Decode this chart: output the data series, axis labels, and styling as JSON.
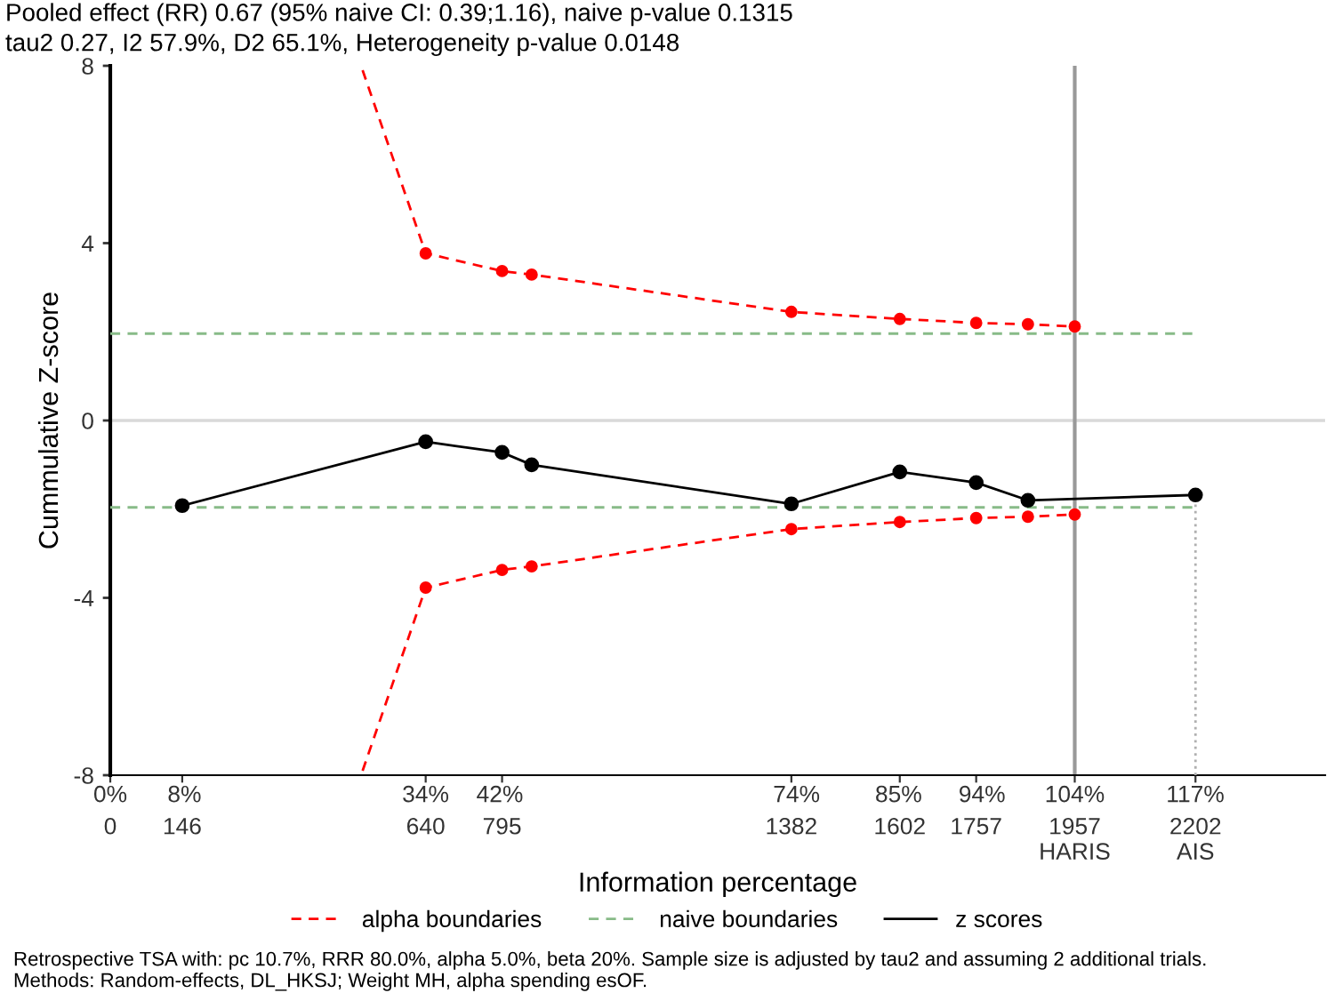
{
  "chart_data": {
    "type": "line",
    "title": "Pooled effect (RR) 0.67 (95% naive CI: 0.39;1.16), naive p-value 0.1315",
    "subtitle": "tau2 0.27, I2 57.9%, D2 65.1%, Heterogeneity p-value 0.0148",
    "xlabel": "Information percentage",
    "ylabel": "Cummulative Z-score",
    "xlim": [
      0,
      2465
    ],
    "xticks": [
      0,
      146,
      640,
      795,
      1382,
      1602,
      1757,
      {
        "value": 1957,
        "label": "1957\nHARIS"
      },
      {
        "value": 2202,
        "label": "2202\nAIS"
      }
    ],
    "x2lim": [
      0,
      131
    ],
    "x2ticks": [
      {
        "value": 0,
        "label": "0%"
      },
      {
        "value": 8,
        "label": "8%"
      },
      {
        "value": 34,
        "label": "34%"
      },
      {
        "value": 42,
        "label": "42%"
      },
      {
        "value": 74,
        "label": "74%"
      },
      {
        "value": 85,
        "label": "85%"
      },
      {
        "value": 94,
        "label": "94%"
      },
      {
        "value": 104,
        "label": "104%"
      },
      {
        "value": 117,
        "label": "117%"
      }
    ],
    "ylim": [
      -8,
      8
    ],
    "yticks": [
      -8,
      -4,
      0,
      4,
      8
    ],
    "grid": false,
    "legend": "bottom",
    "series": [
      {
        "name": "alpha boundaries",
        "type": "line",
        "line_style": "dashed",
        "marker": "none",
        "color": "#ff0000",
        "x": [
          512,
          640,
          795,
          855,
          1382,
          1602,
          1757,
          1862,
          1957
        ],
        "values": [
          7.9,
          3.77,
          3.37,
          3.29,
          2.45,
          2.29,
          2.2,
          2.17,
          2.12
        ]
      },
      {
        "type": "line",
        "line_style": "dashed",
        "marker": "none",
        "color": "#ff0000",
        "x": [
          512,
          640,
          795,
          855,
          1382,
          1602,
          1757,
          1862,
          1957
        ],
        "values": [
          -7.9,
          -3.77,
          -3.37,
          -3.29,
          -2.45,
          -2.29,
          -2.2,
          -2.17,
          -2.12
        ]
      },
      {
        "type": "scatter",
        "marker": "circle",
        "color": "#ff0000",
        "x": [
          640,
          795,
          855,
          1382,
          1602,
          1757,
          1862,
          1957,
          640,
          795,
          855,
          1382,
          1602,
          1757,
          1862,
          1957
        ],
        "values": [
          3.77,
          3.37,
          3.29,
          2.45,
          2.29,
          2.2,
          2.17,
          2.12,
          -3.77,
          -3.37,
          -3.29,
          -2.45,
          -2.29,
          -2.2,
          -2.17,
          -2.12
        ]
      },
      {
        "name": "naive boundaries",
        "type": "line",
        "line_style": "dashed",
        "marker": "none",
        "color": "#88bb88",
        "x": [
          0,
          2202
        ],
        "values": [
          1.96,
          1.96
        ]
      },
      {
        "type": "line",
        "line_style": "dashed",
        "marker": "none",
        "color": "#88bb88",
        "x": [
          0,
          2202
        ],
        "values": [
          -1.96,
          -1.96
        ]
      },
      {
        "type": "line",
        "line_style": "dotted",
        "marker": "none",
        "color": "#b0b0b0",
        "x": [
          2202,
          2202
        ],
        "values": [
          -8,
          -1.68
        ]
      },
      {
        "name": "z scores",
        "type": "line",
        "line_style": "solid",
        "marker": "circle",
        "color": "#000000",
        "x": [
          146,
          640,
          795,
          855,
          1382,
          1602,
          1757,
          1862,
          2202
        ],
        "values": [
          -1.92,
          -0.48,
          -0.72,
          -1.0,
          -1.88,
          -1.16,
          -1.4,
          -1.8,
          -1.68
        ]
      }
    ],
    "ref_lines": [
      {
        "axis": "y",
        "value": 0,
        "color": "#d9d9d9",
        "line_style": "solid"
      },
      {
        "axis": "x",
        "value": 1957,
        "color": "#999999",
        "line_style": "solid"
      }
    ],
    "annotations": [
      "Retrospective TSA with: pc 10.7%, RRR 80.0%, alpha 5.0%, beta 20%. Sample size is adjusted by tau2 and assuming 2 additional trials.\nMethods: Random-effects, DL_HKSJ; Weight MH, alpha spending esOF."
    ]
  }
}
